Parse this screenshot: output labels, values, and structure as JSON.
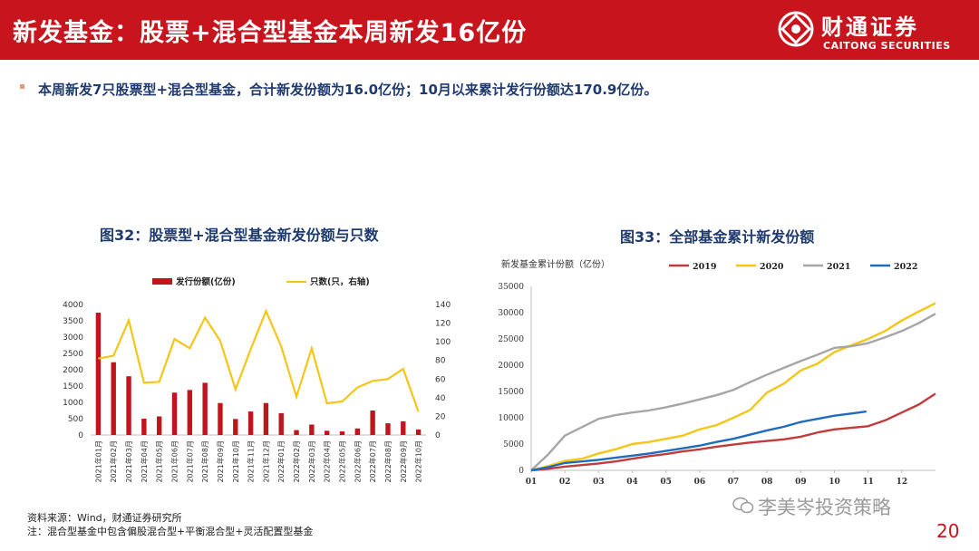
{
  "header": {
    "title": "新发基金：股票+混合型基金本周新发16亿份",
    "brand_cn": "财通证券",
    "brand_en": "CAITONG SECURITIES",
    "color": "#c8141c"
  },
  "summary": "本周新发7只股票型+混合型基金，合计新发份额为16.0亿份；10月以来累计发行份额达170.9亿份。",
  "chart_data": [
    {
      "type": "bar",
      "title": "图32：股票型+混合型基金新发份额与只数",
      "categories": [
        "2021年01月",
        "2021年02月",
        "2021年03月",
        "2021年04月",
        "2021年05月",
        "2021年06月",
        "2021年07月",
        "2021年08月",
        "2021年09月",
        "2021年10月",
        "2021年11月",
        "2021年12月",
        "2022年01月",
        "2022年02月",
        "2022年03月",
        "2022年04月",
        "2022年05月",
        "2022年06月",
        "2022年07月",
        "2022年08月",
        "2022年09月",
        "2022年10月"
      ],
      "series": [
        {
          "name": "发行份额(亿份)",
          "type": "bar",
          "axis": "left",
          "color": "#c0151c",
          "values": [
            3750,
            2230,
            1800,
            500,
            570,
            1300,
            1380,
            1600,
            980,
            490,
            720,
            980,
            670,
            150,
            320,
            130,
            110,
            200,
            750,
            360,
            420,
            170
          ]
        },
        {
          "name": "只数(只，右轴)",
          "type": "line",
          "axis": "right",
          "color": "#f5c518",
          "values": [
            82,
            85,
            123,
            56,
            57,
            103,
            93,
            126,
            101,
            49,
            92,
            133,
            95,
            41,
            93,
            34,
            36,
            51,
            58,
            60,
            71,
            25
          ]
        }
      ],
      "y_left": {
        "min": 0,
        "max": 4000,
        "ticks": [
          "0",
          "500",
          "1000",
          "1500",
          "2000",
          "2500",
          "3000",
          "3500",
          "4000"
        ]
      },
      "y_right": {
        "min": 0,
        "max": 140,
        "ticks": [
          "0",
          "20",
          "40",
          "60",
          "80",
          "100",
          "120",
          "140"
        ]
      }
    },
    {
      "type": "line",
      "title": "图33：全部基金累计新发份额",
      "ylabel": "新发基金累计份额（亿份）",
      "x_ticks": [
        "01",
        "02",
        "03",
        "04",
        "05",
        "06",
        "07",
        "08",
        "09",
        "10",
        "11",
        "12"
      ],
      "y_ticks": [
        "0",
        "5000",
        "10000",
        "15000",
        "20000",
        "25000",
        "30000",
        "35000"
      ],
      "ylim": [
        0,
        35000
      ],
      "xlim": [
        1,
        13
      ],
      "series": [
        {
          "name": "2019",
          "color": "#c23b3b",
          "x": [
            1,
            1.5,
            2,
            2.5,
            3,
            3.5,
            4,
            4.5,
            5,
            5.5,
            6,
            6.5,
            7,
            7.5,
            8,
            8.5,
            9,
            9.5,
            10,
            10.5,
            11,
            11.5,
            12,
            12.5,
            13
          ],
          "y": [
            0,
            300,
            700,
            1000,
            1300,
            1700,
            2200,
            2700,
            3100,
            3600,
            4000,
            4500,
            4900,
            5300,
            5600,
            5900,
            6400,
            7200,
            7800,
            8100,
            8400,
            9500,
            11000,
            12500,
            14600
          ]
        },
        {
          "name": "2020",
          "color": "#f5c518",
          "x": [
            1,
            1.5,
            2,
            2.5,
            3,
            3.5,
            4,
            4.5,
            5,
            5.5,
            6,
            6.5,
            7,
            7.5,
            8,
            8.5,
            9,
            9.5,
            10,
            10.5,
            11,
            11.5,
            12,
            12.5,
            13
          ],
          "y": [
            0,
            800,
            1800,
            2200,
            3200,
            4000,
            5000,
            5400,
            6000,
            6600,
            7800,
            8600,
            10000,
            11500,
            14800,
            16500,
            19000,
            20300,
            22500,
            23800,
            25000,
            26500,
            28500,
            30200,
            31800
          ]
        },
        {
          "name": "2021",
          "color": "#a6a6a6",
          "x": [
            1,
            1.5,
            2,
            2.5,
            3,
            3.5,
            4,
            4.5,
            5,
            5.5,
            6,
            6.5,
            7,
            7.5,
            8,
            8.5,
            9,
            9.5,
            10,
            10.5,
            11,
            11.5,
            12,
            12.5,
            13
          ],
          "y": [
            0,
            3000,
            6600,
            8200,
            9800,
            10500,
            11000,
            11400,
            12000,
            12700,
            13500,
            14300,
            15300,
            16800,
            18200,
            19500,
            20800,
            22000,
            23300,
            23600,
            24200,
            25300,
            26500,
            28000,
            29800
          ]
        },
        {
          "name": "2022",
          "color": "#1f6bbf",
          "x": [
            1,
            1.5,
            2,
            2.5,
            3,
            3.5,
            4,
            4.5,
            5,
            5.5,
            6,
            6.5,
            7,
            7.5,
            8,
            8.5,
            9,
            9.5,
            10,
            10.5,
            10.95
          ],
          "y": [
            0,
            600,
            1400,
            1700,
            2000,
            2400,
            2800,
            3200,
            3700,
            4200,
            4700,
            5400,
            6000,
            6800,
            7600,
            8300,
            9200,
            9800,
            10400,
            10800,
            11200
          ]
        }
      ]
    }
  ],
  "footer": {
    "source": "资料来源：Wind，财通证券研究所",
    "note": "注：混合型基金中包含偏股混合型+平衡混合型+灵活配置型基金"
  },
  "watermark": "李美岑投资策略",
  "page_number": "20"
}
